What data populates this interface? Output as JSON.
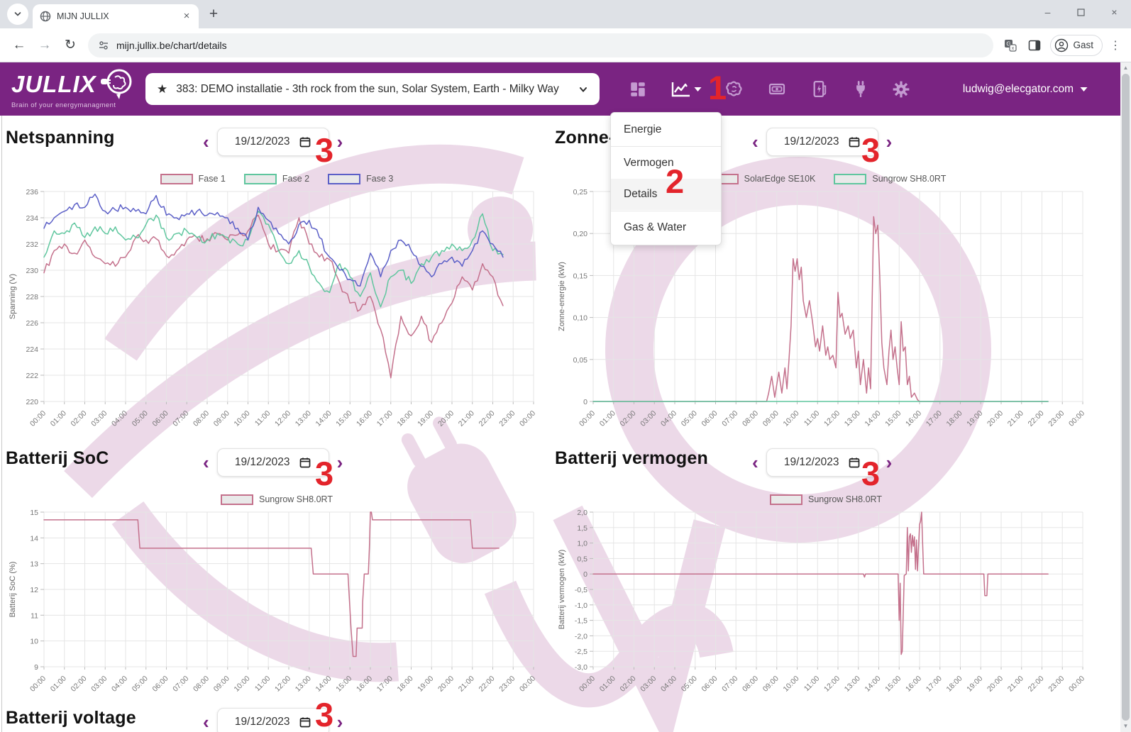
{
  "browser": {
    "tab_title": "MIJN JULLIX",
    "url": "mijn.jullix.be/chart/details",
    "profile_label": "Gast"
  },
  "header": {
    "logo_text": "JULLIX",
    "tagline": "Brain of your energymanagment",
    "selector_value": "383: DEMO installatie - 3th rock from the sun, Solar System, Earth - Milky Way",
    "user_email": "ludwig@elecgator.com",
    "icons": [
      "dashboard",
      "charts",
      "ai-brain",
      "billing",
      "ev-charger",
      "devices-plug",
      "settings"
    ]
  },
  "nav_menu": {
    "items": [
      {
        "label": "Energie"
      },
      {
        "label": "Vermogen",
        "divider_before": true
      },
      {
        "label": "Details",
        "active": true
      },
      {
        "label": "Gas & Water",
        "divider_before": true
      }
    ]
  },
  "datepicker": {
    "value": "19/12/2023"
  },
  "annotations": {
    "menu_trigger": "1",
    "menu_item": "2",
    "datepicker": "3"
  },
  "colors": {
    "header_purple": "#7a2482",
    "annotation_red": "#e3242b",
    "series_pink": "#c4718c",
    "series_green": "#5fc69e",
    "series_blue": "#5b5fc7"
  },
  "next_panel": {
    "title": "Batterij voltage"
  },
  "chart_defaults": {
    "time_labels": [
      "00:00",
      "01:00",
      "02:00",
      "03:00",
      "04:00",
      "05:00",
      "06:00",
      "07:00",
      "08:00",
      "09:00",
      "10:00",
      "11:00",
      "12:00",
      "13:00",
      "14:00",
      "15:00",
      "16:00",
      "17:00",
      "18:00",
      "19:00",
      "20:00",
      "21:00",
      "22:00",
      "23:00",
      "00:00"
    ]
  },
  "chart_data": [
    {
      "id": "netspanning",
      "type": "line",
      "title": "Netspanning",
      "ylabel": "Spanning (V)",
      "ylim": [
        220,
        236
      ],
      "grid": true,
      "legend_position": "top",
      "yticks": [
        {
          "v": 220,
          "l": "220"
        },
        {
          "v": 222,
          "l": "222"
        },
        {
          "v": 224,
          "l": "224"
        },
        {
          "v": 226,
          "l": "226"
        },
        {
          "v": 228,
          "l": "228"
        },
        {
          "v": 230,
          "l": "230"
        },
        {
          "v": 232,
          "l": "232"
        },
        {
          "v": 234,
          "l": "234"
        },
        {
          "v": 236,
          "l": "236"
        }
      ],
      "series": [
        {
          "name": "Fase 1",
          "color": "#c4718c",
          "jitter": 0.32,
          "x_start": 0,
          "x_step": 0.5,
          "y": [
            229.8,
            231.5,
            232.0,
            231.3,
            232.3,
            231.0,
            230.5,
            230.3,
            231.0,
            232.5,
            232.3,
            232.4,
            231.1,
            231.5,
            232.3,
            232.5,
            232.4,
            232.8,
            232.3,
            232.7,
            233.0,
            234.2,
            232.0,
            231.5,
            231.3,
            234.0,
            232.0,
            231.0,
            230.8,
            229.0,
            227.5,
            227.0,
            228.0,
            225.5,
            221.8,
            226.5,
            225.0,
            226.5,
            224.5,
            226.0,
            227.5,
            229.5,
            228.5,
            230.5,
            229.5,
            227.3
          ]
        },
        {
          "name": "Fase 2",
          "color": "#5fc69e",
          "jitter": 0.3,
          "x_start": 0,
          "x_step": 0.5,
          "y": [
            231.0,
            233.0,
            232.8,
            233.6,
            232.5,
            233.3,
            232.8,
            233.3,
            232.3,
            232.5,
            233.5,
            234.2,
            232.5,
            232.8,
            233.0,
            232.5,
            232.3,
            232.8,
            232.5,
            232.0,
            232.3,
            234.5,
            233.5,
            231.5,
            230.5,
            231.5,
            230.3,
            229.0,
            228.3,
            230.5,
            229.5,
            228.0,
            229.8,
            227.2,
            229.5,
            230.0,
            229.0,
            230.5,
            231.0,
            231.5,
            232.0,
            231.5,
            232.3,
            234.3,
            231.5,
            231.2
          ]
        },
        {
          "name": "Fase 3",
          "color": "#5b5fc7",
          "jitter": 0.3,
          "x_start": 0,
          "x_step": 0.5,
          "y": [
            233.2,
            234.0,
            234.5,
            235.0,
            234.8,
            235.8,
            234.5,
            234.6,
            234.8,
            234.5,
            234.3,
            235.7,
            234.2,
            234.0,
            234.3,
            234.5,
            234.2,
            234.4,
            234.0,
            233.2,
            232.3,
            234.8,
            233.8,
            232.8,
            232.0,
            233.5,
            233.8,
            232.5,
            231.0,
            230.0,
            229.3,
            228.8,
            231.3,
            229.5,
            231.5,
            232.3,
            231.5,
            230.3,
            229.5,
            230.5,
            231.0,
            230.3,
            231.5,
            233.0,
            232.0,
            231.0
          ]
        }
      ]
    },
    {
      "id": "zonne_energie",
      "type": "line",
      "title": "Zonne-energie",
      "ylabel": "Zonne-energie (kW)",
      "ylim": [
        0,
        0.25
      ],
      "grid": true,
      "legend_position": "top",
      "yticks": [
        {
          "v": 0,
          "l": "0"
        },
        {
          "v": 0.05,
          "l": "0,05"
        },
        {
          "v": 0.1,
          "l": "0,10"
        },
        {
          "v": 0.15,
          "l": "0,15"
        },
        {
          "v": 0.2,
          "l": "0,20"
        },
        {
          "v": 0.25,
          "l": "0,25"
        }
      ],
      "series": [
        {
          "name": "SolarEdge SE10K",
          "color": "#c4718c",
          "x": [
            0,
            8.5,
            8.6,
            8.75,
            8.9,
            9.1,
            9.25,
            9.4,
            9.5,
            9.6,
            9.7,
            9.8,
            9.9,
            10.0,
            10.1,
            10.2,
            10.3,
            10.45,
            10.6,
            10.75,
            10.9,
            11.0,
            11.1,
            11.25,
            11.4,
            11.5,
            11.6,
            11.75,
            11.9,
            12.0,
            12.1,
            12.2,
            12.35,
            12.5,
            12.6,
            12.75,
            12.9,
            13.0,
            13.1,
            13.25,
            13.4,
            13.5,
            13.6,
            13.75,
            13.85,
            13.95,
            14.05,
            14.15,
            14.25,
            14.4,
            14.5,
            14.6,
            14.7,
            14.8,
            14.9,
            15.0,
            15.1,
            15.2,
            15.3,
            15.4,
            15.5,
            15.6,
            15.75,
            15.9,
            16.0,
            22.3
          ],
          "y": [
            0,
            0,
            0.01,
            0.03,
            0.005,
            0.035,
            0.01,
            0.04,
            0.015,
            0.05,
            0.09,
            0.17,
            0.155,
            0.17,
            0.145,
            0.16,
            0.12,
            0.1,
            0.12,
            0.095,
            0.065,
            0.075,
            0.06,
            0.09,
            0.055,
            0.065,
            0.05,
            0.055,
            0.04,
            0.13,
            0.1,
            0.105,
            0.08,
            0.09,
            0.075,
            0.085,
            0.04,
            0.06,
            0.02,
            0.05,
            0.01,
            0.04,
            0.015,
            0.22,
            0.2,
            0.21,
            0.15,
            0.07,
            0.04,
            0.02,
            0.06,
            0.085,
            0.05,
            0.065,
            0.04,
            0.02,
            0.095,
            0.06,
            0.065,
            0.02,
            0.03,
            0.005,
            0.01,
            0.002,
            0,
            0
          ]
        },
        {
          "name": "Sungrow SH8.0RT",
          "color": "#5fc69e",
          "x": [
            0,
            22.3
          ],
          "y": [
            0,
            0
          ]
        }
      ]
    },
    {
      "id": "batterij_soc",
      "type": "line",
      "title": "Batterij SoC",
      "ylabel": "Batterij SoC (%)",
      "ylim": [
        9,
        15
      ],
      "grid": true,
      "legend_position": "top",
      "yticks": [
        {
          "v": 9,
          "l": "9"
        },
        {
          "v": 10,
          "l": "10"
        },
        {
          "v": 11,
          "l": "11"
        },
        {
          "v": 12,
          "l": "12"
        },
        {
          "v": 13,
          "l": "13"
        },
        {
          "v": 14,
          "l": "14"
        },
        {
          "v": 15,
          "l": "15"
        }
      ],
      "series": [
        {
          "name": "Sungrow SH8.0RT",
          "color": "#c4718c",
          "x": [
            0,
            4.6,
            4.7,
            13.1,
            13.2,
            14.9,
            15.05,
            15.15,
            15.3,
            15.35,
            15.45,
            15.6,
            15.62,
            15.7,
            15.9,
            15.95,
            16.0,
            16.05,
            16.1,
            20.9,
            21.0,
            22.3
          ],
          "y": [
            14.7,
            14.7,
            13.6,
            13.6,
            12.6,
            12.6,
            10.5,
            9.4,
            9.4,
            10.5,
            10.5,
            10.5,
            11.5,
            12.6,
            12.6,
            13.6,
            15.0,
            15.0,
            14.7,
            14.7,
            13.6,
            13.6
          ]
        }
      ]
    },
    {
      "id": "batterij_vermogen",
      "type": "line",
      "title": "Batterij vermogen",
      "ylabel": "Batterij vermogen (kW)",
      "ylim": [
        -3,
        2
      ],
      "grid": true,
      "legend_position": "top",
      "yticks": [
        {
          "v": -3,
          "l": "-3,0"
        },
        {
          "v": -2.5,
          "l": "-2,5"
        },
        {
          "v": -2,
          "l": "-2,0"
        },
        {
          "v": -1.5,
          "l": "-1,5"
        },
        {
          "v": -1,
          "l": "-1,0"
        },
        {
          "v": -0.5,
          "l": "-0,5"
        },
        {
          "v": 0,
          "l": "0"
        },
        {
          "v": 0.5,
          "l": "0,5"
        },
        {
          "v": 1,
          "l": "1,0"
        },
        {
          "v": 1.5,
          "l": "1,5"
        },
        {
          "v": 2,
          "l": "2,0"
        }
      ],
      "series": [
        {
          "name": "Sungrow SH8.0RT",
          "color": "#c4718c",
          "x": [
            0,
            13.25,
            13.3,
            13.35,
            14.95,
            15.0,
            15.05,
            15.1,
            15.15,
            15.25,
            15.35,
            15.4,
            15.45,
            15.5,
            15.55,
            15.6,
            15.65,
            15.7,
            15.75,
            15.8,
            15.85,
            15.9,
            16.0,
            16.05,
            16.1,
            16.15,
            16.2,
            19.15,
            19.2,
            19.3,
            19.35,
            22.3
          ],
          "y": [
            0,
            0,
            -0.1,
            0,
            0,
            -1.5,
            -0.3,
            -2.6,
            -2.5,
            -0.05,
            0,
            1.5,
            0.1,
            1.2,
            1.3,
            0.7,
            1.25,
            0.9,
            1.2,
            0.15,
            1.1,
            0.1,
            1.6,
            1.7,
            2.0,
            1.0,
            0,
            0,
            -0.7,
            -0.7,
            0,
            0
          ]
        }
      ]
    }
  ]
}
